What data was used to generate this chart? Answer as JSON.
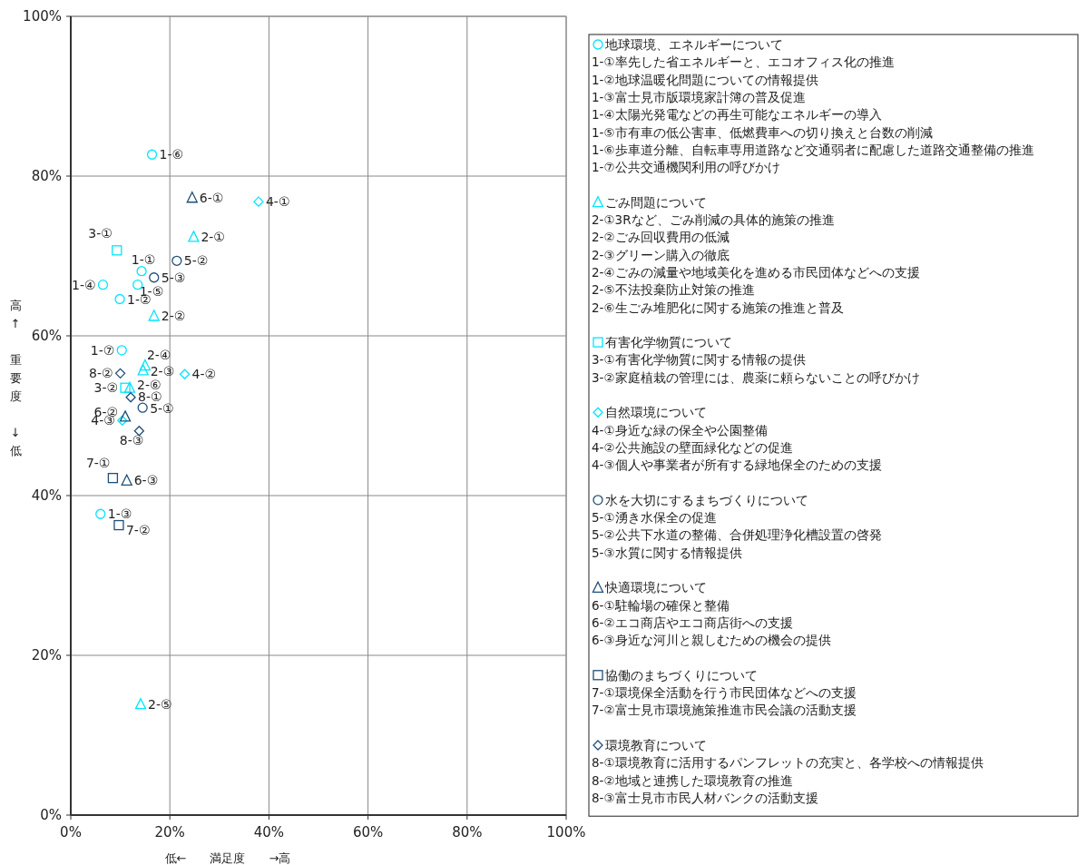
{
  "chart_data": {
    "type": "scatter",
    "xlabel": "低←　　満足度　　→高",
    "ylabel": "高↑　重要度　↓低",
    "xlim": [
      0,
      100
    ],
    "ylim": [
      0,
      100
    ],
    "xticks": [
      {
        "value": 0,
        "label": "0%"
      },
      {
        "value": 20,
        "label": "20%"
      },
      {
        "value": 40,
        "label": "40%"
      },
      {
        "value": 60,
        "label": "60%"
      },
      {
        "value": 80,
        "label": "80%"
      },
      {
        "value": 100,
        "label": "100%"
      }
    ],
    "yticks": [
      {
        "value": 0,
        "label": "0%"
      },
      {
        "value": 20,
        "label": "20%"
      },
      {
        "value": 40,
        "label": "40%"
      },
      {
        "value": 60,
        "label": "60%"
      },
      {
        "value": 80,
        "label": "80%"
      },
      {
        "value": 100,
        "label": "100%"
      }
    ],
    "grid": true,
    "legend": "right",
    "series": [
      {
        "name": "地球環境、エネルギーについて",
        "color": "#00e5ff",
        "marker": "circle",
        "x": [
          14.3,
          9.9,
          6.0,
          6.5,
          13.5,
          16.4,
          10.3
        ],
        "values": [
          68.1,
          64.6,
          37.7,
          66.4,
          66.4,
          82.7,
          58.2
        ]
      },
      {
        "name": "ごみ問題について",
        "color": "#00e5ff",
        "marker": "triangle",
        "x": [
          24.8,
          16.8,
          14.6,
          15.0,
          14.1,
          11.9
        ],
        "values": [
          72.4,
          62.5,
          55.7,
          56.3,
          13.9,
          53.5
        ]
      },
      {
        "name": "有害化学物質について",
        "color": "#00e5ff",
        "marker": "square",
        "x": [
          9.3,
          11.0
        ],
        "values": [
          70.7,
          53.5
        ]
      },
      {
        "name": "自然環境について",
        "color": "#00e5ff",
        "marker": "diamond",
        "x": [
          37.9,
          23.0,
          10.4
        ],
        "values": [
          76.8,
          55.2,
          49.4
        ]
      },
      {
        "name": "水を大切にするまちづくりについて",
        "color": "#1f4e79",
        "marker": "circle",
        "x": [
          14.5,
          21.4,
          16.8
        ],
        "values": [
          51.0,
          69.4,
          67.3
        ]
      },
      {
        "name": "快適環境について",
        "color": "#1f4e79",
        "marker": "triangle",
        "x": [
          24.5,
          11.0,
          11.3
        ],
        "values": [
          77.3,
          49.9,
          41.9
        ]
      },
      {
        "name": "協働のまちづくりについて",
        "color": "#1f4e79",
        "marker": "square",
        "x": [
          8.5,
          9.7
        ],
        "values": [
          42.2,
          36.3
        ]
      },
      {
        "name": "環境教育について",
        "color": "#1f4e79",
        "marker": "diamond",
        "x": [
          12.1,
          10.0,
          13.8
        ],
        "values": [
          52.3,
          55.3,
          48.1
        ]
      }
    ],
    "annotations": [
      {
        "text": "1-①",
        "x": 14.3,
        "y": 68.1
      },
      {
        "text": "1-②",
        "x": 9.9,
        "y": 64.6
      },
      {
        "text": "1-③",
        "x": 6.0,
        "y": 37.7
      },
      {
        "text": "1-④",
        "x": 6.5,
        "y": 66.4
      },
      {
        "text": "1-⑤",
        "x": 13.5,
        "y": 66.4
      },
      {
        "text": "1-⑥",
        "x": 16.4,
        "y": 82.7
      },
      {
        "text": "1-⑦",
        "x": 10.3,
        "y": 58.2
      },
      {
        "text": "2-①",
        "x": 24.8,
        "y": 72.4
      },
      {
        "text": "2-②",
        "x": 16.8,
        "y": 62.5
      },
      {
        "text": "2-③",
        "x": 14.6,
        "y": 55.7
      },
      {
        "text": "2-④",
        "x": 15.0,
        "y": 56.3
      },
      {
        "text": "2-⑤",
        "x": 14.1,
        "y": 13.9
      },
      {
        "text": "2-⑥",
        "x": 11.9,
        "y": 53.5
      },
      {
        "text": "3-①",
        "x": 9.3,
        "y": 70.7
      },
      {
        "text": "3-②",
        "x": 11.0,
        "y": 53.5
      },
      {
        "text": "4-①",
        "x": 37.9,
        "y": 76.8
      },
      {
        "text": "4-②",
        "x": 23.0,
        "y": 55.2
      },
      {
        "text": "4-③",
        "x": 10.4,
        "y": 49.4
      },
      {
        "text": "5-①",
        "x": 14.5,
        "y": 51.0
      },
      {
        "text": "5-②",
        "x": 21.4,
        "y": 69.4
      },
      {
        "text": "5-③",
        "x": 16.8,
        "y": 67.3
      },
      {
        "text": "6-①",
        "x": 24.5,
        "y": 77.3
      },
      {
        "text": "6-②",
        "x": 11.0,
        "y": 49.9
      },
      {
        "text": "6-③",
        "x": 11.3,
        "y": 41.9
      },
      {
        "text": "7-①",
        "x": 8.5,
        "y": 42.2
      },
      {
        "text": "7-②",
        "x": 9.7,
        "y": 36.3
      },
      {
        "text": "8-①",
        "x": 12.1,
        "y": 52.3
      },
      {
        "text": "8-②",
        "x": 10.0,
        "y": 55.3
      },
      {
        "text": "8-③",
        "x": 13.8,
        "y": 48.1
      },
      "1-①率先した省エネルギーと、エコオフィス化の推進",
      "1-②地球温暖化問題についての情報提供",
      "1-③富士見市版環境家計簿の普及促進",
      "1-④太陽光発電などの再生可能なエネルギーの導入",
      "1-⑤市有車の低公害車、低燃費車への切り換えと台数の削減",
      "1-⑥歩車道分離、自転車専用道路など交通弱者に配慮した道路交通整備の推進",
      "1-⑦公共交通機関利用の呼びかけ",
      "2-①3Rなど、ごみ削減の具体的施策の推進",
      "2-②ごみ回収費用の低減",
      "2-③グリーン購入の徹底",
      "2-④ごみの減量や地域美化を進める市民団体などへの支援",
      "2-⑤不法投棄防止対策の推進",
      "2-⑥生ごみ堆肥化に関する施策の推進と普及",
      "3-①有害化学物質に関する情報の提供",
      "3-②家庭植栽の管理には、農薬に頼らないことの呼びかけ",
      "4-①身近な緑の保全や公園整備",
      "4-②公共施設の壁面緑化などの促進",
      "4-③個人や事業者が所有する緑地保全のための支援",
      "5-①湧き水保全の促進",
      "5-②公共下水道の整備、合併処理浄化槽設置の啓発",
      "5-③水質に関する情報提供",
      "6-①駐輪場の確保と整備",
      "6-②エコ商店やエコ商店街への支援",
      "6-③身近な河川と親しむための機会の提供",
      "7-①環境保全活動を行う市民団体などへの支援",
      "7-②富士見市環境施策推進市民会議の活動支援",
      "8-①環境教育に活用するパンフレットの充実と、各学校への情報提供",
      "8-②地域と連携した環境教育の推進",
      "8-③富士見市市民人材バンクの活動支援"
    ]
  }
}
